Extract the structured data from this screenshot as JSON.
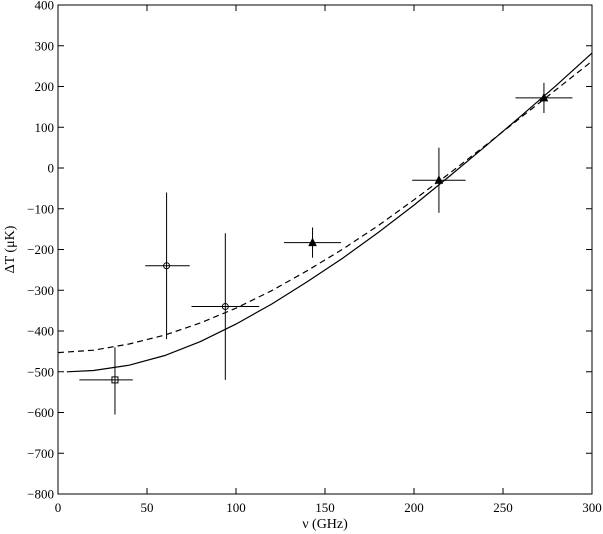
{
  "chart_data": {
    "type": "scatter",
    "title": "",
    "xlabel": "ν (GHz)",
    "ylabel": "ΔT (μK)",
    "xlim": [
      0,
      300
    ],
    "ylim": [
      -800,
      400
    ],
    "x_ticks": [
      0,
      50,
      100,
      150,
      200,
      250,
      300
    ],
    "y_ticks": [
      400,
      300,
      200,
      100,
      0,
      -100,
      -200,
      -300,
      -400,
      -500,
      -600,
      -700,
      -800
    ],
    "grid": false,
    "legend": "none",
    "points": [
      {
        "marker": "square",
        "x": 32,
        "y": -520,
        "xerr": [
          20,
          10
        ],
        "yerr": [
          85,
          80
        ]
      },
      {
        "marker": "circle",
        "x": 61,
        "y": -240,
        "xerr": [
          12,
          13
        ],
        "yerr": [
          180,
          180
        ]
      },
      {
        "marker": "circle",
        "x": 94,
        "y": -340,
        "xerr": [
          19,
          19
        ],
        "yerr": [
          180,
          180
        ]
      },
      {
        "marker": "triangle",
        "x": 143,
        "y": -183,
        "xerr": [
          16,
          16
        ],
        "yerr": [
          37,
          37
        ]
      },
      {
        "marker": "triangle",
        "x": 214,
        "y": -30,
        "xerr": [
          15,
          15
        ],
        "yerr": [
          80,
          80
        ]
      },
      {
        "marker": "triangle",
        "x": 273,
        "y": 172,
        "xerr": [
          16,
          16
        ],
        "yerr": [
          37,
          37
        ]
      }
    ],
    "curves": [
      {
        "style": "solid",
        "x": [
          5,
          20,
          40,
          60,
          80,
          100,
          120,
          140,
          160,
          180,
          200,
          220,
          240,
          260,
          280,
          300
        ],
        "y": [
          -500,
          -497,
          -484,
          -460,
          -426,
          -383,
          -334,
          -279,
          -221,
          -158,
          -91,
          -20,
          53,
          127,
          203,
          282
        ]
      },
      {
        "style": "dashed",
        "x": [
          0,
          20,
          40,
          60,
          80,
          100,
          120,
          140,
          160,
          180,
          200,
          220,
          240,
          260,
          280,
          300
        ],
        "y": [
          -453,
          -447,
          -432,
          -410,
          -380,
          -344,
          -301,
          -252,
          -199,
          -141,
          -78,
          -13,
          55,
          124,
          193,
          262
        ]
      }
    ]
  }
}
